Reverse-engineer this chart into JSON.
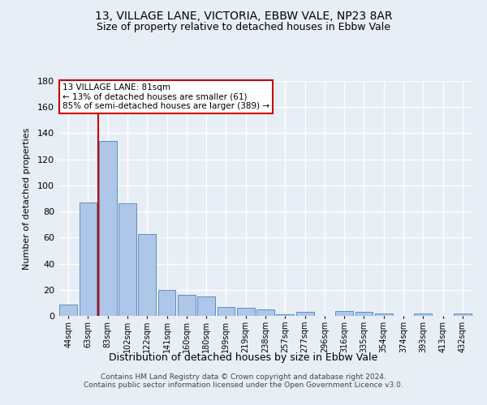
{
  "title": "13, VILLAGE LANE, VICTORIA, EBBW VALE, NP23 8AR",
  "subtitle": "Size of property relative to detached houses in Ebbw Vale",
  "xlabel": "Distribution of detached houses by size in Ebbw Vale",
  "ylabel": "Number of detached properties",
  "footer_line1": "Contains HM Land Registry data © Crown copyright and database right 2024.",
  "footer_line2": "Contains public sector information licensed under the Open Government Licence v3.0.",
  "bar_labels": [
    "44sqm",
    "63sqm",
    "83sqm",
    "102sqm",
    "122sqm",
    "141sqm",
    "160sqm",
    "180sqm",
    "199sqm",
    "219sqm",
    "238sqm",
    "257sqm",
    "277sqm",
    "296sqm",
    "316sqm",
    "335sqm",
    "354sqm",
    "374sqm",
    "393sqm",
    "413sqm",
    "432sqm"
  ],
  "bar_values": [
    9,
    87,
    134,
    86,
    63,
    20,
    16,
    15,
    7,
    6,
    5,
    1,
    3,
    0,
    4,
    3,
    2,
    0,
    2,
    0,
    2
  ],
  "bar_color": "#aec6e8",
  "bar_edge_color": "#5a8fc0",
  "background_color": "#e8eef5",
  "grid_color": "#ffffff",
  "property_label": "13 VILLAGE LANE: 81sqm",
  "annotation_line1": "← 13% of detached houses are smaller (61)",
  "annotation_line2": "85% of semi-detached houses are larger (389) →",
  "annotation_box_color": "#ffffff",
  "annotation_box_edge_color": "#cc0000",
  "vline_color": "#cc0000",
  "vline_x": 1.5,
  "ylim": [
    0,
    180
  ],
  "yticks": [
    0,
    20,
    40,
    60,
    80,
    100,
    120,
    140,
    160,
    180
  ]
}
